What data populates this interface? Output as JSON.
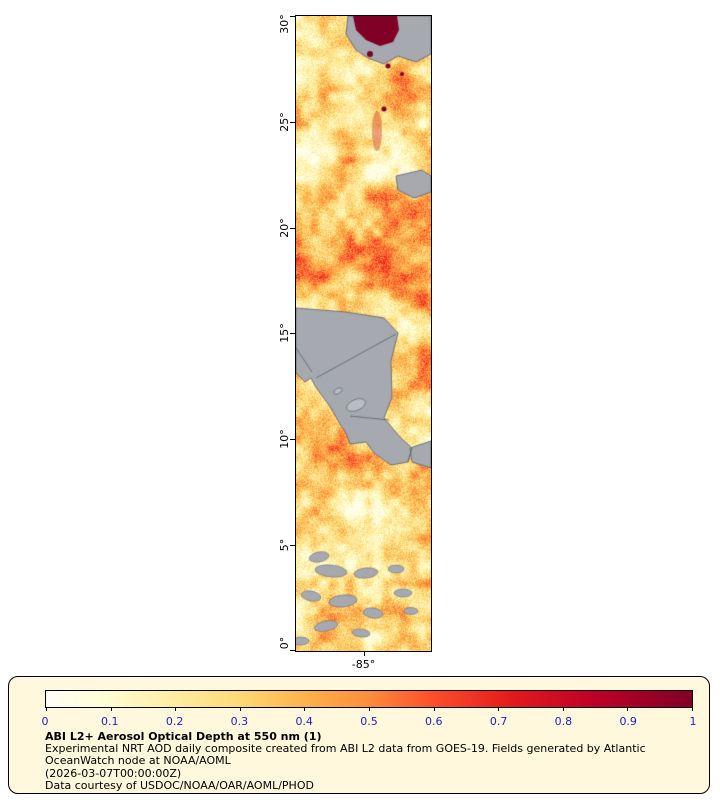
{
  "map": {
    "x_axis": {
      "tick_label": "-85°"
    },
    "y_axis": {
      "tick_labels": [
        "30°",
        "25°",
        "20°",
        "15°",
        "10°",
        "5°",
        "0°"
      ]
    }
  },
  "legend": {
    "background": "#fff8dc",
    "border_color": "#000000",
    "tick_color": "#2222cc",
    "tick_labels": [
      "0",
      "0.1",
      "0.2",
      "0.3",
      "0.4",
      "0.5",
      "0.6",
      "0.7",
      "0.8",
      "0.9",
      "1"
    ],
    "title": "ABI L2+ Aerosol Optical Depth at 550 nm (1)",
    "caption_lines": [
      "Experimental NRT AOD daily composite created from ABI L2 data from GOES-19. Fields generated by Atlantic",
      "OceanWatch node at NOAA/AOML",
      "(2026-03-07T00:00:00Z)",
      "Data courtesy of USDOC/NOAA/OAR/AOML/PHOD"
    ]
  },
  "chart_data": {
    "type": "heatmap",
    "title": "ABI L2+ Aerosol Optical Depth at 550 nm (1)",
    "variable": "Aerosol Optical Depth at 550 nm",
    "value_range": [
      0,
      1
    ],
    "colorbar_ticks": [
      0,
      0.1,
      0.2,
      0.3,
      0.4,
      0.5,
      0.6,
      0.7,
      0.8,
      0.9,
      1
    ],
    "region": {
      "lat_min": 0,
      "lat_max": 30,
      "lon_tick": -85
    },
    "land_color": "#a6a9b0",
    "coast_color": "#5c6070",
    "lake_color": "#b8bcc4",
    "colormap_stops": [
      {
        "v": 0.0,
        "c": "#fffef5"
      },
      {
        "v": 0.08,
        "c": "#ffffd9"
      },
      {
        "v": 0.2,
        "c": "#ffeda0"
      },
      {
        "v": 0.3,
        "c": "#fed976"
      },
      {
        "v": 0.4,
        "c": "#feb24c"
      },
      {
        "v": 0.5,
        "c": "#fd8d3c"
      },
      {
        "v": 0.6,
        "c": "#fc4e2a"
      },
      {
        "v": 0.72,
        "c": "#e31a1c"
      },
      {
        "v": 0.85,
        "c": "#bd0026"
      },
      {
        "v": 1.0,
        "c": "#800026"
      }
    ]
  }
}
